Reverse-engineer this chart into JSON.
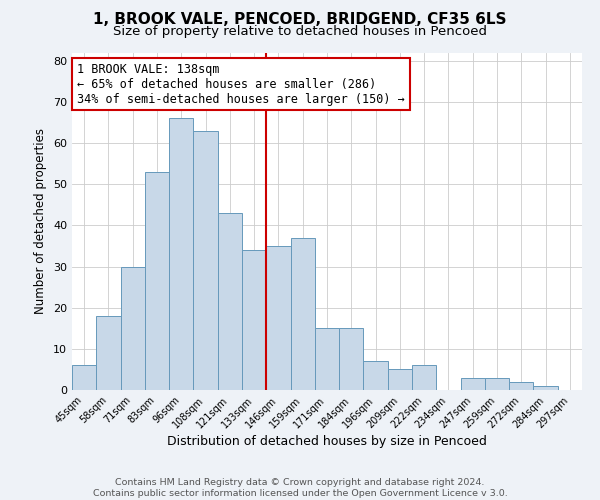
{
  "title": "1, BROOK VALE, PENCOED, BRIDGEND, CF35 6LS",
  "subtitle": "Size of property relative to detached houses in Pencoed",
  "xlabel": "Distribution of detached houses by size in Pencoed",
  "ylabel": "Number of detached properties",
  "footer_line1": "Contains HM Land Registry data © Crown copyright and database right 2024.",
  "footer_line2": "Contains public sector information licensed under the Open Government Licence v 3.0.",
  "categories": [
    "45sqm",
    "58sqm",
    "71sqm",
    "83sqm",
    "96sqm",
    "108sqm",
    "121sqm",
    "133sqm",
    "146sqm",
    "159sqm",
    "171sqm",
    "184sqm",
    "196sqm",
    "209sqm",
    "222sqm",
    "234sqm",
    "247sqm",
    "259sqm",
    "272sqm",
    "284sqm",
    "297sqm"
  ],
  "values": [
    6,
    18,
    30,
    53,
    66,
    63,
    43,
    34,
    35,
    37,
    15,
    15,
    7,
    5,
    6,
    0,
    3,
    3,
    2,
    1,
    0
  ],
  "bar_color": "#c8d8e8",
  "bar_edge_color": "#6699bb",
  "annotation_line1": "1 BROOK VALE: 138sqm",
  "annotation_line2": "← 65% of detached houses are smaller (286)",
  "annotation_line3": "34% of semi-detached houses are larger (150) →",
  "annotation_box_color": "#ffffff",
  "annotation_box_edge_color": "#cc0000",
  "vline_color": "#cc0000",
  "background_color": "#eef2f7",
  "plot_background_color": "#ffffff",
  "grid_color": "#cccccc",
  "ylim": [
    0,
    82
  ],
  "title_fontsize": 11,
  "subtitle_fontsize": 9.5,
  "annot_fontsize": 8.5,
  "footer_fontsize": 6.8
}
